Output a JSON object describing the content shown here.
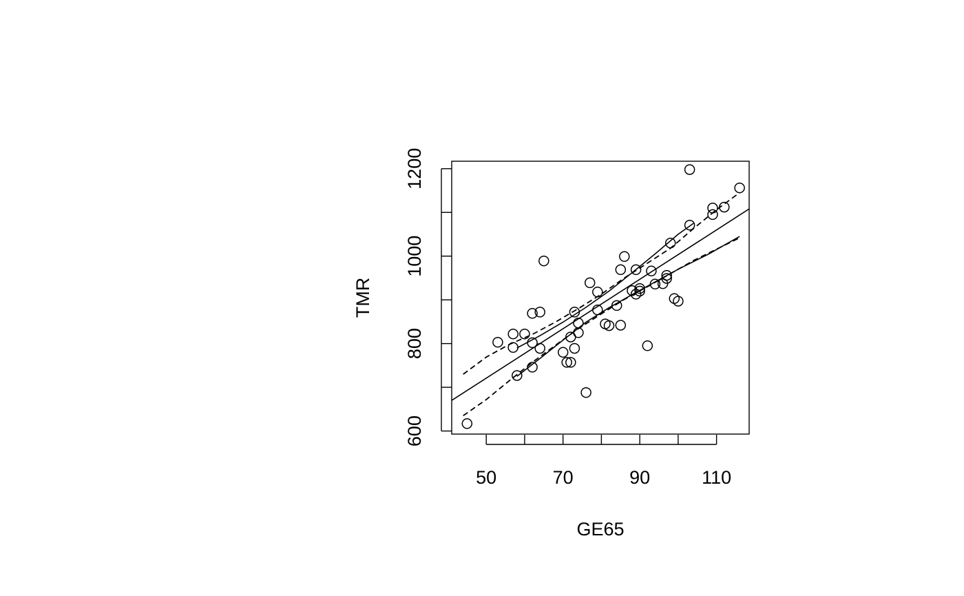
{
  "chart_data": {
    "type": "scatter",
    "title": "",
    "xlabel": "GE65",
    "ylabel": "TMR",
    "xlim": [
      41,
      118.5
    ],
    "ylim": [
      593,
      1217
    ],
    "x_ticks": [
      50,
      60,
      70,
      80,
      90,
      100,
      110
    ],
    "x_tick_labels": [
      "50",
      "",
      "70",
      "",
      "90",
      "",
      "110"
    ],
    "y_ticks": [
      600,
      700,
      800,
      900,
      1000,
      1100,
      1200
    ],
    "y_tick_labels": [
      "600",
      "",
      "800",
      "",
      "1000",
      "",
      "1200"
    ],
    "grid": false,
    "legend": "none",
    "points": [
      [
        45,
        617
      ],
      [
        53,
        803
      ],
      [
        57,
        822
      ],
      [
        57,
        791
      ],
      [
        58,
        727
      ],
      [
        60,
        822
      ],
      [
        62,
        869
      ],
      [
        62,
        802
      ],
      [
        62,
        746
      ],
      [
        64,
        872
      ],
      [
        64,
        789
      ],
      [
        65,
        989
      ],
      [
        70,
        780
      ],
      [
        71,
        757
      ],
      [
        72,
        815
      ],
      [
        72,
        757
      ],
      [
        73,
        872
      ],
      [
        73,
        789
      ],
      [
        74,
        847
      ],
      [
        74,
        825
      ],
      [
        76,
        688
      ],
      [
        77,
        939
      ],
      [
        79,
        918
      ],
      [
        79,
        877
      ],
      [
        81,
        845
      ],
      [
        82,
        841
      ],
      [
        84,
        887
      ],
      [
        85,
        969
      ],
      [
        85,
        842
      ],
      [
        86,
        999
      ],
      [
        88,
        921
      ],
      [
        89,
        969
      ],
      [
        89,
        913
      ],
      [
        90,
        926
      ],
      [
        90,
        920
      ],
      [
        92,
        795
      ],
      [
        93,
        966
      ],
      [
        94,
        936
      ],
      [
        96,
        937
      ],
      [
        97,
        956
      ],
      [
        97,
        949
      ],
      [
        98,
        1030
      ],
      [
        99,
        903
      ],
      [
        100,
        897
      ],
      [
        103,
        1198
      ],
      [
        103,
        1071
      ],
      [
        109,
        1110
      ],
      [
        109,
        1095
      ],
      [
        112,
        1112
      ],
      [
        116,
        1156
      ]
    ],
    "series": [
      {
        "style": "solid",
        "x": [
          41,
          118.5
        ],
        "y": [
          670,
          1108
        ]
      },
      {
        "style": "solid",
        "x": [
          58,
          64,
          70,
          76,
          82,
          88,
          94,
          100,
          104
        ],
        "y": [
          790,
          818,
          849,
          883,
          920,
          962,
          1005,
          1050,
          1075
        ]
      },
      {
        "style": "solid",
        "x": [
          58,
          64,
          70,
          76,
          82,
          88,
          94,
          100,
          108,
          116
        ],
        "y": [
          725,
          766,
          808,
          849,
          882,
          912,
          941,
          970,
          1005,
          1045
        ]
      },
      {
        "style": "dashed",
        "x": [
          44,
          50,
          56,
          62,
          68,
          74,
          80,
          86,
          92,
          98,
          104,
          110,
          116
        ],
        "y": [
          730,
          769,
          798,
          821,
          849,
          880,
          913,
          950,
          984,
          1018,
          1063,
          1106,
          1145
        ]
      },
      {
        "style": "dashed",
        "x": [
          44,
          50,
          56,
          62,
          68,
          74,
          80,
          86,
          92,
          98,
          104,
          110,
          116
        ],
        "y": [
          635,
          672,
          715,
          757,
          796,
          834,
          868,
          901,
          930,
          960,
          990,
          1016,
          1042
        ]
      }
    ]
  }
}
